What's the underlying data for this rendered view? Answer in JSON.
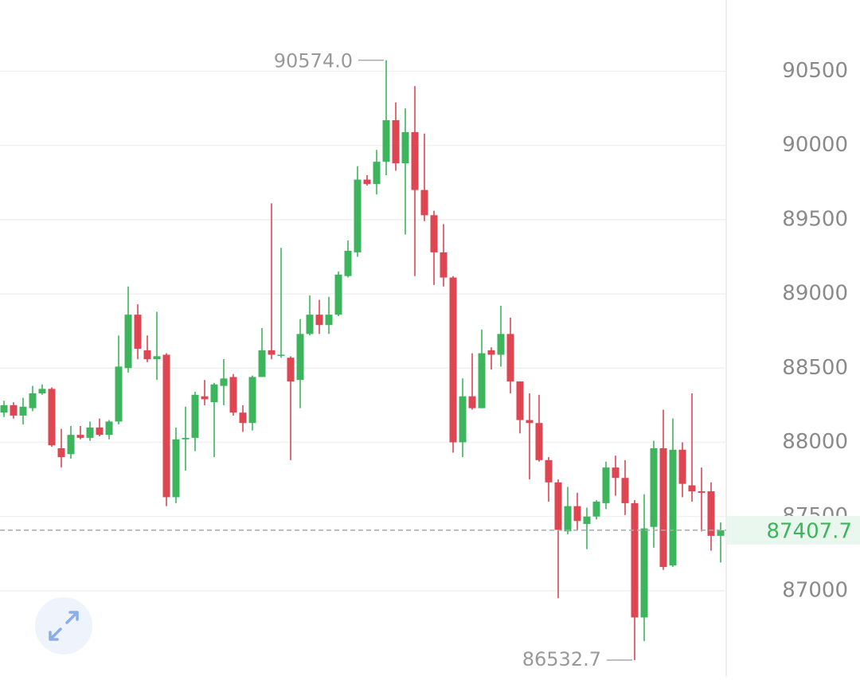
{
  "chart_data": {
    "type": "candlestick",
    "ylim": [
      86420,
      90980
    ],
    "yticks": [
      87000,
      87500,
      88000,
      88500,
      89000,
      89500,
      90000,
      90500
    ],
    "grid": true,
    "up_color": "#3cb55c",
    "down_color": "#e04552",
    "open": [
      88200,
      88250,
      88180,
      88230,
      88330,
      88360,
      87960,
      87920,
      88050,
      88030,
      88100,
      88050,
      88140,
      88500,
      88860,
      88620,
      88560,
      88590,
      87630,
      88020,
      88030,
      88310,
      88270,
      88380,
      88440,
      88200,
      88130,
      88440,
      88620,
      88590,
      88570,
      88420,
      88730,
      88860,
      88790,
      88860,
      89120,
      89280,
      89770,
      89740,
      89890,
      90170,
      89880,
      90090,
      89700,
      89530,
      89280,
      89110,
      88000,
      88310,
      88230,
      88620,
      88590,
      88730,
      88410,
      88150,
      88130,
      87880,
      87730,
      87400,
      87570,
      87450,
      87500,
      87590,
      87830,
      87760,
      87590,
      86820,
      87430,
      87960,
      87170,
      87950,
      87710,
      87670,
      87670,
      87370
    ],
    "high": [
      88280,
      88270,
      88300,
      88380,
      88390,
      88370,
      88090,
      88110,
      88110,
      88140,
      88160,
      88150,
      88720,
      89050,
      88930,
      88720,
      88880,
      88600,
      88100,
      88240,
      88340,
      88420,
      88400,
      88560,
      88460,
      88250,
      88450,
      88770,
      89610,
      89310,
      88580,
      88830,
      88990,
      88960,
      88980,
      89150,
      89360,
      89860,
      89800,
      89970,
      90574,
      90290,
      90250,
      90400,
      90080,
      89560,
      89470,
      89120,
      88430,
      88600,
      88760,
      88640,
      88920,
      88840,
      88410,
      88330,
      88320,
      87900,
      87750,
      87700,
      87660,
      87560,
      87610,
      87870,
      87910,
      87880,
      87610,
      87650,
      88010,
      88220,
      88160,
      88000,
      88330,
      87830,
      87730,
      87460
    ],
    "low": [
      88170,
      88160,
      88120,
      88210,
      88320,
      87970,
      87830,
      87890,
      88020,
      88010,
      88040,
      88020,
      88120,
      88470,
      88560,
      88540,
      88420,
      87570,
      87590,
      87810,
      87940,
      88250,
      87900,
      88250,
      88180,
      88070,
      88080,
      88440,
      88560,
      88570,
      87880,
      88230,
      88720,
      88730,
      88730,
      88850,
      89110,
      89250,
      89730,
      89670,
      89800,
      89830,
      89400,
      89120,
      89490,
      89060,
      89050,
      87930,
      87900,
      88220,
      88230,
      88490,
      88510,
      88330,
      88060,
      87750,
      87870,
      87600,
      86950,
      87380,
      87410,
      87280,
      87480,
      87550,
      87640,
      87510,
      86532.7,
      86660,
      87290,
      87140,
      87160,
      87630,
      87600,
      87400,
      87270,
      87190
    ],
    "close": [
      88250,
      88180,
      88240,
      88330,
      88360,
      87980,
      87900,
      88050,
      88030,
      88100,
      88050,
      88140,
      88510,
      88860,
      88630,
      88560,
      88580,
      87630,
      88020,
      88030,
      88320,
      88290,
      88390,
      88430,
      88200,
      88130,
      88440,
      88620,
      88590,
      88590,
      88410,
      88730,
      88860,
      88790,
      88860,
      89130,
      89290,
      89770,
      89740,
      89890,
      90170,
      89880,
      90090,
      89700,
      89530,
      89280,
      89110,
      88000,
      88310,
      88230,
      88600,
      88590,
      88730,
      88410,
      88150,
      88130,
      87880,
      87730,
      87410,
      87570,
      87470,
      87500,
      87600,
      87830,
      87760,
      87590,
      86820,
      87420,
      87960,
      87160,
      87950,
      87720,
      87670,
      87660,
      87370,
      87407.7
    ],
    "max_annotation": {
      "value": 90574,
      "label": "90574.0"
    },
    "min_annotation": {
      "value": 86532.7,
      "label": "86532.7"
    },
    "last_price": {
      "value": 87407.7,
      "label": "87407.7"
    }
  }
}
